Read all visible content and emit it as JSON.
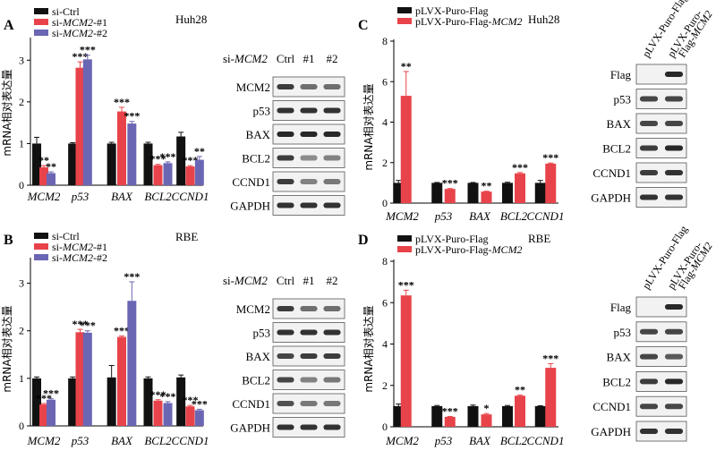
{
  "colors": {
    "black": "#111111",
    "red": "#e8434a",
    "blue": "#6b66b4",
    "axis": "#000000"
  },
  "chart_data": [
    {
      "type": "bar",
      "panel": "A",
      "title": "Huh28",
      "ylabel": "mRNA相对表达量",
      "ylim": [
        0,
        3.5
      ],
      "yticks": [
        0,
        1,
        2,
        3
      ],
      "categories": [
        "MCM2",
        "p53",
        "BAX",
        "BCL2",
        "CCND1"
      ],
      "series": [
        {
          "name": "si-Ctrl",
          "legend_prefix": "si-Ctrl",
          "legend_italic": "",
          "legend_suffix": "",
          "color": "black",
          "values": [
            1.0,
            1.0,
            1.0,
            1.0,
            1.17
          ],
          "errors": [
            0.15,
            0.02,
            0.03,
            0.03,
            0.1
          ],
          "sig": [
            "",
            "",
            "",
            "",
            ""
          ]
        },
        {
          "name": "si-MCM2-#1",
          "legend_prefix": "si-",
          "legend_italic": "MCM2",
          "legend_suffix": "-#1",
          "color": "red",
          "values": [
            0.43,
            2.82,
            1.77,
            0.48,
            0.45
          ],
          "errors": [
            0.04,
            0.14,
            0.1,
            0.02,
            0.02
          ],
          "sig": [
            "**",
            "***",
            "***",
            "***",
            "***"
          ]
        },
        {
          "name": "si-MCM2-#2",
          "legend_prefix": "si-",
          "legend_italic": "MCM2",
          "legend_suffix": "-#2",
          "color": "blue",
          "values": [
            0.29,
            3.02,
            1.48,
            0.53,
            0.61
          ],
          "errors": [
            0.03,
            0.1,
            0.05,
            0.03,
            0.08
          ],
          "sig": [
            "**",
            "***",
            "***",
            "***",
            "**"
          ]
        }
      ]
    },
    {
      "type": "bar",
      "panel": "B",
      "title": "RBE",
      "ylabel": "mRNA相对表达量",
      "ylim": [
        0,
        3.5
      ],
      "yticks": [
        0,
        1,
        2,
        3
      ],
      "categories": [
        "MCM2",
        "p53",
        "BAX",
        "BCL2",
        "CCND1"
      ],
      "series": [
        {
          "name": "si-Ctrl",
          "legend_prefix": "si-Ctrl",
          "legend_italic": "",
          "legend_suffix": "",
          "color": "black",
          "values": [
            1.0,
            1.0,
            1.02,
            1.0,
            1.02
          ],
          "errors": [
            0.03,
            0.03,
            0.25,
            0.03,
            0.05
          ],
          "sig": [
            "",
            "",
            "",
            "",
            ""
          ]
        },
        {
          "name": "si-MCM2-#1",
          "legend_prefix": "si-",
          "legend_italic": "MCM2",
          "legend_suffix": "-#1",
          "color": "red",
          "values": [
            0.45,
            1.97,
            1.87,
            0.53,
            0.41
          ],
          "errors": [
            0.02,
            0.06,
            0.02,
            0.02,
            0.02
          ],
          "sig": [
            "***",
            "***",
            "***",
            "***",
            "***"
          ]
        },
        {
          "name": "si-MCM2-#2",
          "legend_prefix": "si-",
          "legend_italic": "MCM2",
          "legend_suffix": "-#2",
          "color": "blue",
          "values": [
            0.55,
            1.96,
            2.63,
            0.48,
            0.33
          ],
          "errors": [
            0.02,
            0.04,
            0.4,
            0.03,
            0.02
          ],
          "sig": [
            "***",
            "***",
            "***",
            "***",
            "***"
          ]
        }
      ]
    },
    {
      "type": "bar",
      "panel": "C",
      "title": "Huh28",
      "ylabel": "mRNA相对表达量",
      "ylim": [
        0,
        8
      ],
      "yticks": [
        0,
        2,
        4,
        6,
        8
      ],
      "categories": [
        "MCM2",
        "p53",
        "BAX",
        "BCL2",
        "CCND1"
      ],
      "series": [
        {
          "name": "pLVX-Puro-Flag",
          "legend_prefix": "pLVX-Puro-Flag",
          "legend_italic": "",
          "legend_suffix": "",
          "color": "black",
          "values": [
            1.0,
            1.0,
            1.0,
            1.0,
            1.0
          ],
          "errors": [
            0.12,
            0.02,
            0.02,
            0.03,
            0.12
          ],
          "sig": [
            "",
            "",
            "",
            "",
            ""
          ]
        },
        {
          "name": "pLVX-Puro-Flag-MCM2",
          "legend_prefix": "pLVX-Puro-Flag-",
          "legend_italic": "MCM2",
          "legend_suffix": "",
          "color": "red",
          "values": [
            5.3,
            0.7,
            0.57,
            1.47,
            1.95
          ],
          "errors": [
            1.2,
            0.02,
            0.02,
            0.04,
            0.03
          ],
          "sig": [
            "**",
            "***",
            "**",
            "***",
            "***"
          ]
        }
      ]
    },
    {
      "type": "bar",
      "panel": "D",
      "title": "RBE",
      "ylabel": "mRNA相对表达量",
      "ylim": [
        0,
        8
      ],
      "yticks": [
        0,
        2,
        4,
        6,
        8
      ],
      "categories": [
        "MCM2",
        "p53",
        "BAX",
        "BCL2",
        "CCND1"
      ],
      "series": [
        {
          "name": "pLVX-Puro-Flag",
          "legend_prefix": "pLVX-Puro-Flag",
          "legend_italic": "",
          "legend_suffix": "",
          "color": "black",
          "values": [
            1.0,
            1.0,
            1.0,
            1.0,
            1.0
          ],
          "errors": [
            0.1,
            0.03,
            0.05,
            0.03,
            0.02
          ],
          "sig": [
            "",
            "",
            "",
            "",
            ""
          ]
        },
        {
          "name": "pLVX-Puro-Flag-MCM2",
          "legend_prefix": "pLVX-Puro-Flag-",
          "legend_italic": "MCM2",
          "legend_suffix": "",
          "color": "red",
          "values": [
            6.35,
            0.48,
            0.6,
            1.5,
            2.85
          ],
          "errors": [
            0.25,
            0.02,
            0.04,
            0.03,
            0.2
          ],
          "sig": [
            "***",
            "***",
            "*",
            "**",
            "***"
          ]
        }
      ]
    }
  ],
  "blots": {
    "A": {
      "header_prefix": "si-",
      "header_italic": "MCM2",
      "lanes": [
        "Ctrl",
        "#1",
        "#2"
      ],
      "proteins": [
        "MCM2",
        "p53",
        "BAX",
        "BCL2",
        "CCND1",
        "GAPDH"
      ],
      "intensity": [
        [
          0.85,
          0.6,
          0.6
        ],
        [
          0.9,
          0.9,
          0.9
        ],
        [
          0.95,
          0.95,
          0.95
        ],
        [
          0.85,
          0.45,
          0.5
        ],
        [
          0.85,
          0.5,
          0.55
        ],
        [
          0.9,
          0.9,
          0.9
        ]
      ]
    },
    "B": {
      "header_prefix": "si-",
      "header_italic": "MCM2",
      "lanes": [
        "Ctrl",
        "#1",
        "#2"
      ],
      "proteins": [
        "MCM2",
        "p53",
        "BAX",
        "BCL2",
        "CCND1",
        "GAPDH"
      ],
      "intensity": [
        [
          0.85,
          0.6,
          0.6
        ],
        [
          0.9,
          0.9,
          0.9
        ],
        [
          0.8,
          0.85,
          0.85
        ],
        [
          0.8,
          0.5,
          0.55
        ],
        [
          0.75,
          0.55,
          0.55
        ],
        [
          0.9,
          0.9,
          0.9
        ]
      ]
    },
    "C": {
      "lanes_prefix": [
        "pLVX-Puro-Flag",
        "pLVX-Puro-"
      ],
      "lanes_line2": [
        "",
        "Flag-"
      ],
      "lanes_italic": [
        "",
        "MCM2"
      ],
      "proteins": [
        "Flag",
        "p53",
        "BAX",
        "BCL2",
        "CCND1",
        "GAPDH"
      ],
      "intensity": [
        [
          0.0,
          0.95
        ],
        [
          0.8,
          0.8
        ],
        [
          0.8,
          0.8
        ],
        [
          0.85,
          0.95
        ],
        [
          0.85,
          0.9
        ],
        [
          0.9,
          0.9
        ]
      ]
    },
    "D": {
      "lanes_prefix": [
        "pLVX-Puro-Flag",
        "pLVX-Puro-"
      ],
      "lanes_line2": [
        "",
        "Flag-"
      ],
      "lanes_italic": [
        "",
        "MCM2"
      ],
      "proteins": [
        "Flag",
        "p53",
        "BAX",
        "BCL2",
        "CCND1",
        "GAPDH"
      ],
      "intensity": [
        [
          0.0,
          0.95
        ],
        [
          0.8,
          0.8
        ],
        [
          0.8,
          0.7
        ],
        [
          0.85,
          0.95
        ],
        [
          0.8,
          0.8
        ],
        [
          0.9,
          0.9
        ]
      ]
    }
  }
}
